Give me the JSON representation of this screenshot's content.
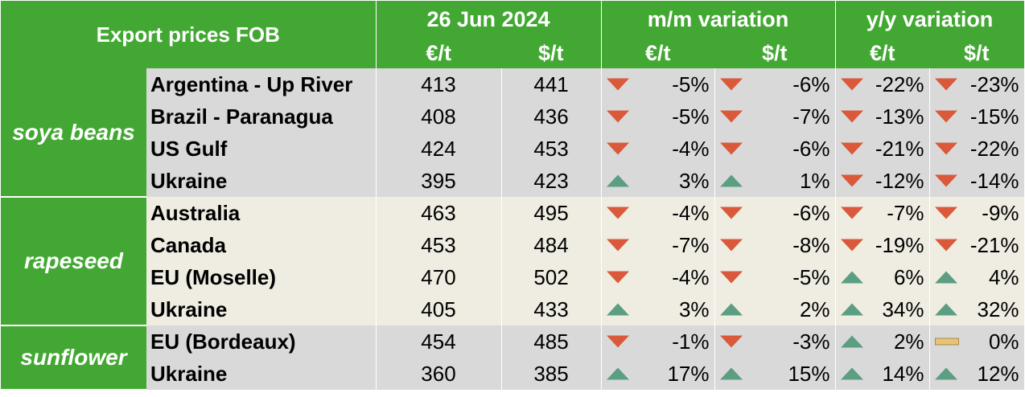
{
  "header": {
    "title": "Export prices FOB",
    "date": "26 Jun 2024",
    "mm": "m/m variation",
    "yy": "y/y variation",
    "eur": "€/t",
    "usd": "$/t"
  },
  "colors": {
    "header_green": "#43a833",
    "row_grey": "#d9d9d9",
    "row_cream": "#efece2",
    "down_red": "#d9593a",
    "up_green": "#5c9e82",
    "flat_yellow": "#e8c276"
  },
  "groups": [
    {
      "name": "soya beans",
      "rows": [
        {
          "origin": "Argentina - Up River",
          "eur": "413",
          "usd": "441",
          "mm_eur": {
            "v": "-5%",
            "dir": "down"
          },
          "mm_usd": {
            "v": "-6%",
            "dir": "down"
          },
          "yy_eur": {
            "v": "-22%",
            "dir": "down"
          },
          "yy_usd": {
            "v": "-23%",
            "dir": "down"
          }
        },
        {
          "origin": "Brazil - Paranagua",
          "eur": "408",
          "usd": "436",
          "mm_eur": {
            "v": "-5%",
            "dir": "down"
          },
          "mm_usd": {
            "v": "-7%",
            "dir": "down"
          },
          "yy_eur": {
            "v": "-13%",
            "dir": "down"
          },
          "yy_usd": {
            "v": "-15%",
            "dir": "down"
          }
        },
        {
          "origin": "US Gulf",
          "eur": "424",
          "usd": "453",
          "mm_eur": {
            "v": "-4%",
            "dir": "down"
          },
          "mm_usd": {
            "v": "-6%",
            "dir": "down"
          },
          "yy_eur": {
            "v": "-21%",
            "dir": "down"
          },
          "yy_usd": {
            "v": "-22%",
            "dir": "down"
          }
        },
        {
          "origin": "Ukraine",
          "eur": "395",
          "usd": "423",
          "mm_eur": {
            "v": "3%",
            "dir": "up"
          },
          "mm_usd": {
            "v": "1%",
            "dir": "up"
          },
          "yy_eur": {
            "v": "-12%",
            "dir": "down"
          },
          "yy_usd": {
            "v": "-14%",
            "dir": "down"
          }
        }
      ]
    },
    {
      "name": "rapeseed",
      "rows": [
        {
          "origin": "Australia",
          "eur": "463",
          "usd": "495",
          "mm_eur": {
            "v": "-4%",
            "dir": "down"
          },
          "mm_usd": {
            "v": "-6%",
            "dir": "down"
          },
          "yy_eur": {
            "v": "-7%",
            "dir": "down"
          },
          "yy_usd": {
            "v": "-9%",
            "dir": "down"
          }
        },
        {
          "origin": "Canada",
          "eur": "453",
          "usd": "484",
          "mm_eur": {
            "v": "-7%",
            "dir": "down"
          },
          "mm_usd": {
            "v": "-8%",
            "dir": "down"
          },
          "yy_eur": {
            "v": "-19%",
            "dir": "down"
          },
          "yy_usd": {
            "v": "-21%",
            "dir": "down"
          }
        },
        {
          "origin": "EU (Moselle)",
          "eur": "470",
          "usd": "502",
          "mm_eur": {
            "v": "-4%",
            "dir": "down"
          },
          "mm_usd": {
            "v": "-5%",
            "dir": "down"
          },
          "yy_eur": {
            "v": "6%",
            "dir": "up"
          },
          "yy_usd": {
            "v": "4%",
            "dir": "up"
          }
        },
        {
          "origin": "Ukraine",
          "eur": "405",
          "usd": "433",
          "mm_eur": {
            "v": "3%",
            "dir": "up"
          },
          "mm_usd": {
            "v": "2%",
            "dir": "up"
          },
          "yy_eur": {
            "v": "34%",
            "dir": "up"
          },
          "yy_usd": {
            "v": "32%",
            "dir": "up"
          }
        }
      ]
    },
    {
      "name": "sunflower",
      "rows": [
        {
          "origin": "EU (Bordeaux)",
          "eur": "454",
          "usd": "485",
          "mm_eur": {
            "v": "-1%",
            "dir": "down"
          },
          "mm_usd": {
            "v": "-3%",
            "dir": "down"
          },
          "yy_eur": {
            "v": "2%",
            "dir": "up"
          },
          "yy_usd": {
            "v": "0%",
            "dir": "flat"
          }
        },
        {
          "origin": "Ukraine",
          "eur": "360",
          "usd": "385",
          "mm_eur": {
            "v": "17%",
            "dir": "up"
          },
          "mm_usd": {
            "v": "15%",
            "dir": "up"
          },
          "yy_eur": {
            "v": "14%",
            "dir": "up"
          },
          "yy_usd": {
            "v": "12%",
            "dir": "up"
          }
        }
      ]
    }
  ]
}
